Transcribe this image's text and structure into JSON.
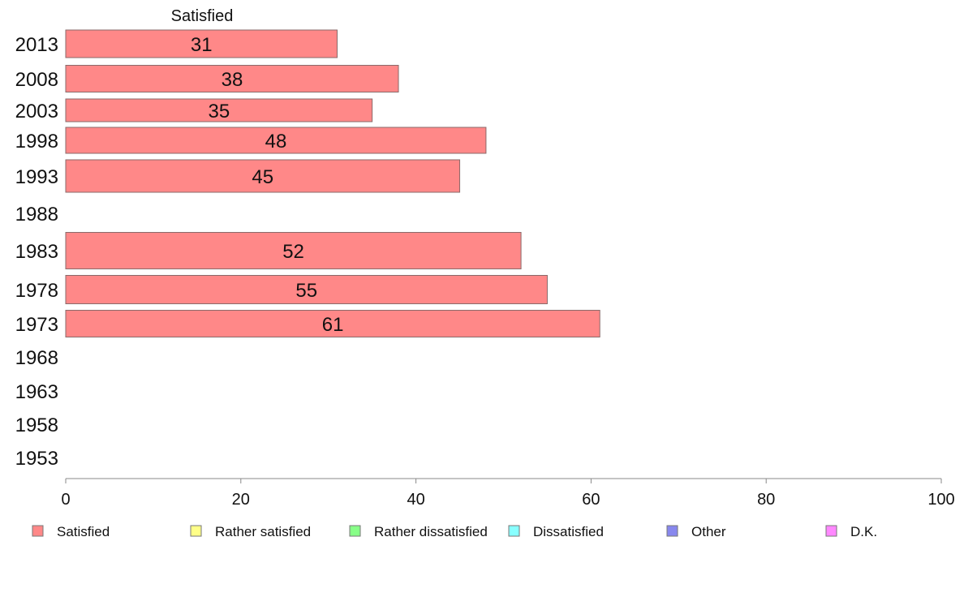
{
  "chart_data": {
    "type": "bar",
    "orientation": "horizontal",
    "title": "Satisfied",
    "categories": [
      "2013",
      "2008",
      "2003",
      "1998",
      "1993",
      "1988",
      "1983",
      "1978",
      "1973",
      "1968",
      "1963",
      "1958",
      "1953"
    ],
    "series": [
      {
        "name": "Satisfied",
        "color": "#ff8888",
        "values": [
          31,
          38,
          35,
          48,
          45,
          null,
          52,
          55,
          61,
          null,
          null,
          null,
          null
        ]
      }
    ],
    "xlim": [
      0,
      100
    ],
    "xticks": [
      0,
      20,
      40,
      60,
      80,
      100
    ],
    "grid": false,
    "legend_position": "bottom",
    "legend": [
      {
        "label": "Satisfied",
        "color": "#ff8888"
      },
      {
        "label": "Rather satisfied",
        "color": "#ffff88"
      },
      {
        "label": "Rather dissatisfied",
        "color": "#88ff88"
      },
      {
        "label": "Dissatisfied",
        "color": "#88ffff"
      },
      {
        "label": "Other",
        "color": "#8888ee"
      },
      {
        "label": "D.K.",
        "color": "#ff88ff"
      }
    ]
  }
}
